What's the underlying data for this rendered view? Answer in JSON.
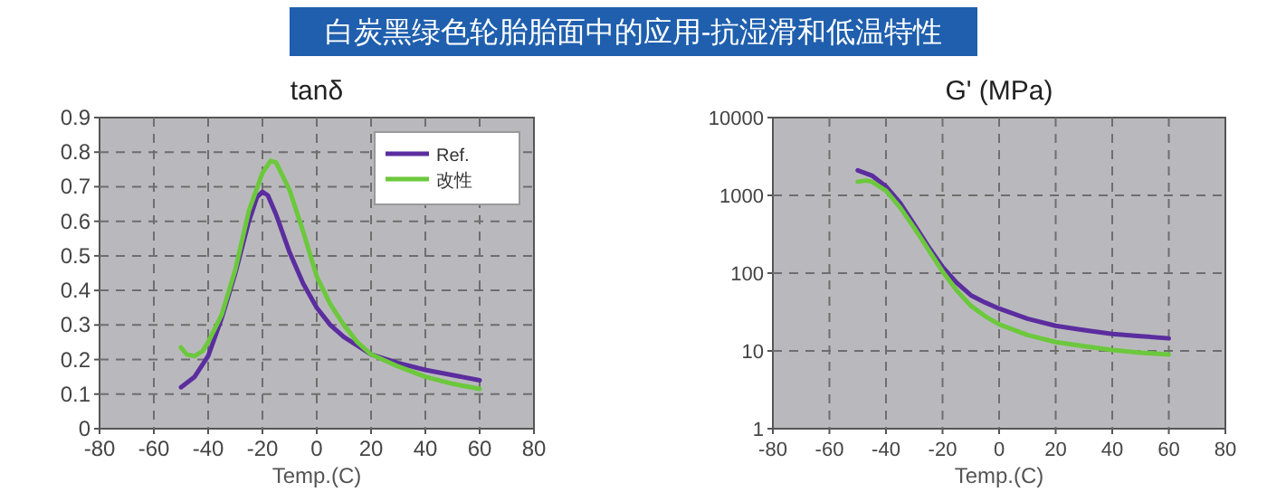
{
  "chart_data": [
    {
      "type": "line",
      "title": "tanδ",
      "xlabel": "Temp.(C)",
      "annotations": [
        "白炭黑绿色轮胎胎面中的应用-抗湿滑和低温特性"
      ],
      "xlim": [
        -80,
        80
      ],
      "xticks": [
        -80,
        -60,
        -40,
        -20,
        0,
        20,
        40,
        60,
        80
      ],
      "ylim": [
        0,
        0.9
      ],
      "yticks": [
        0,
        0.1,
        0.2,
        0.3,
        0.4,
        0.5,
        0.6,
        0.7,
        0.8,
        0.9
      ],
      "grid": true,
      "legend": "top right",
      "series": [
        {
          "name": "Ref.",
          "color": "#5b2d9e",
          "x": [
            -50,
            -45,
            -40,
            -35,
            -30,
            -25,
            -22,
            -20,
            -18,
            -15,
            -10,
            -5,
            0,
            5,
            10,
            15,
            20,
            30,
            40,
            50,
            60
          ],
          "values": [
            0.12,
            0.15,
            0.21,
            0.32,
            0.45,
            0.6,
            0.67,
            0.685,
            0.675,
            0.62,
            0.51,
            0.42,
            0.35,
            0.3,
            0.265,
            0.24,
            0.215,
            0.19,
            0.17,
            0.155,
            0.14
          ]
        },
        {
          "name": "改性",
          "color": "#6cc83c",
          "x": [
            -50,
            -48,
            -45,
            -42,
            -40,
            -35,
            -30,
            -25,
            -20,
            -17,
            -15,
            -10,
            -5,
            0,
            5,
            10,
            15,
            20,
            30,
            40,
            50,
            60
          ],
          "values": [
            0.235,
            0.215,
            0.21,
            0.225,
            0.25,
            0.33,
            0.46,
            0.63,
            0.74,
            0.775,
            0.77,
            0.69,
            0.57,
            0.44,
            0.36,
            0.3,
            0.25,
            0.215,
            0.18,
            0.15,
            0.13,
            0.115
          ]
        }
      ]
    },
    {
      "type": "line",
      "title": "G' (MPa)",
      "xlabel": "Temp.(C)",
      "log": "y",
      "xlim": [
        -80,
        80
      ],
      "xticks": [
        -80,
        -60,
        -40,
        -20,
        0,
        20,
        40,
        60,
        80
      ],
      "ylim": [
        1,
        10000
      ],
      "yticks": [
        1,
        10,
        100,
        1000,
        10000
      ],
      "grid": true,
      "series": [
        {
          "color": "#5b2d9e",
          "x": [
            -50,
            -45,
            -40,
            -35,
            -30,
            -25,
            -20,
            -15,
            -10,
            -5,
            0,
            10,
            20,
            30,
            40,
            50,
            60
          ],
          "values": [
            2100,
            1800,
            1300,
            800,
            420,
            220,
            120,
            75,
            52,
            42,
            35,
            26,
            21,
            18.5,
            16.5,
            15.5,
            14.5
          ]
        },
        {
          "color": "#6cc83c",
          "x": [
            -50,
            -47,
            -45,
            -40,
            -35,
            -30,
            -25,
            -20,
            -15,
            -10,
            -5,
            0,
            10,
            20,
            30,
            40,
            50,
            60
          ],
          "values": [
            1500,
            1550,
            1500,
            1150,
            700,
            380,
            200,
            105,
            60,
            38,
            28,
            22,
            16,
            13,
            11.5,
            10.3,
            9.5,
            9
          ]
        }
      ]
    }
  ]
}
